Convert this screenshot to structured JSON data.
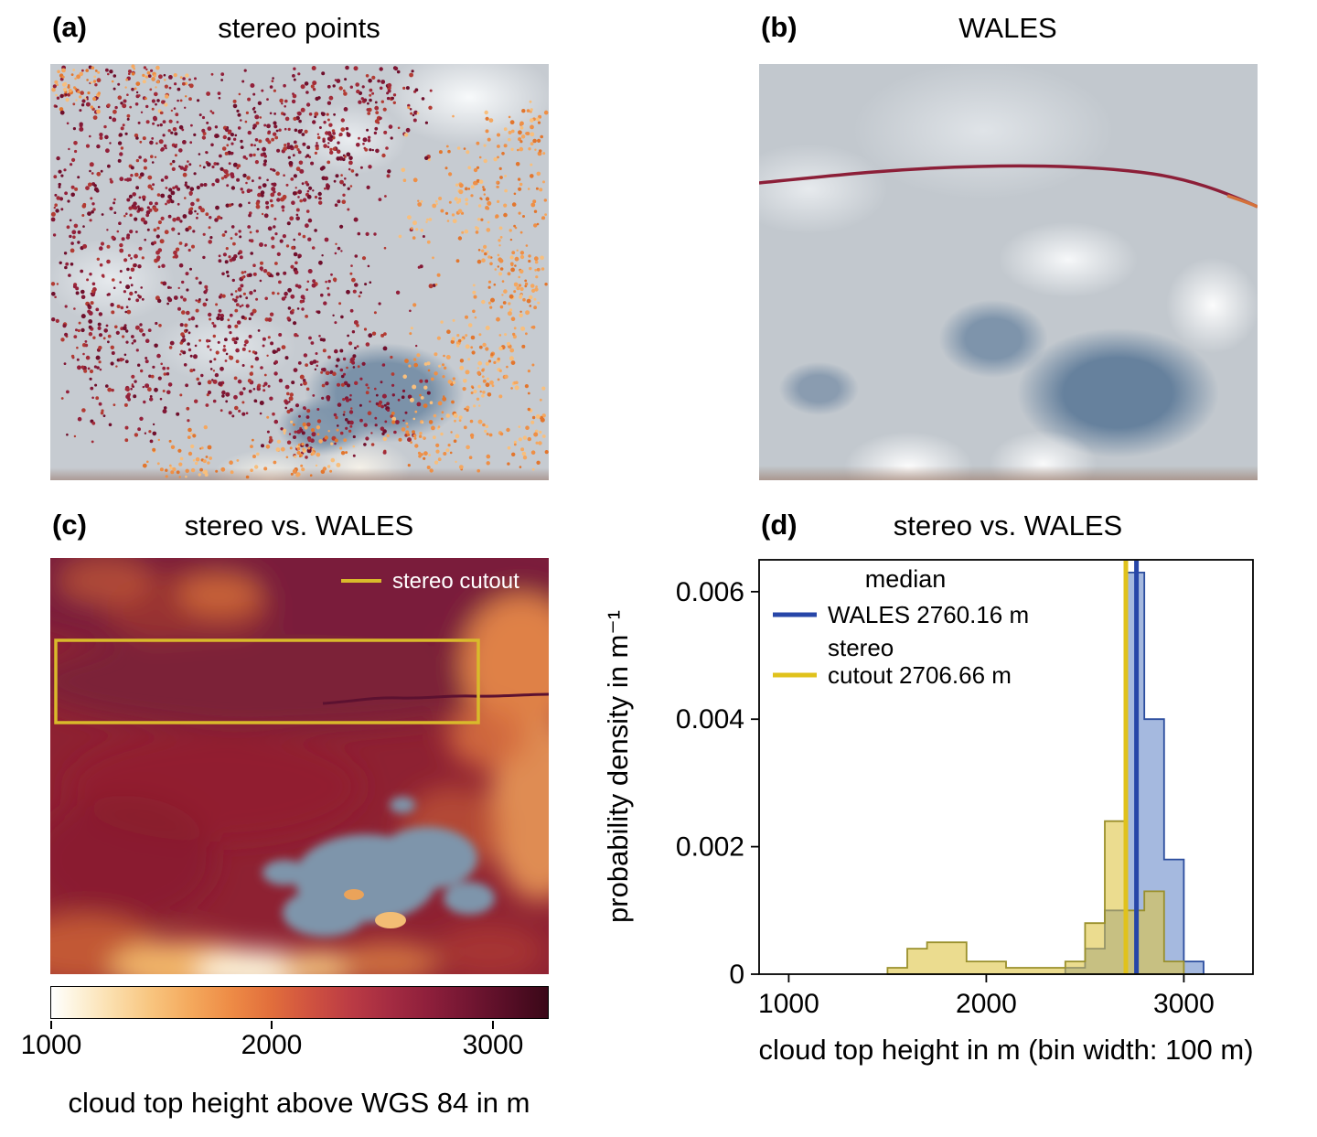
{
  "panels": {
    "a": {
      "label": "(a)",
      "title": "stereo points"
    },
    "b": {
      "label": "(b)",
      "title": "WALES"
    },
    "c": {
      "label": "(c)",
      "title": "stereo vs. WALES",
      "cutout_legend": "stereo cutout"
    },
    "d": {
      "label": "(d)",
      "title": "stereo vs. WALES"
    }
  },
  "colorbar": {
    "label": "cloud top height above WGS 84 in m",
    "tick_labels": [
      "1000",
      "2000",
      "3000"
    ],
    "tick_values": [
      1000,
      2000,
      3000
    ],
    "range": [
      1000,
      3250
    ]
  },
  "chart_data": {
    "type": "bar",
    "subtype": "overlaid-step-histograms",
    "title": "stereo vs. WALES",
    "xlabel": "cloud top height in m (bin width: 100 m)",
    "ylabel": "probability density in m⁻¹",
    "xlim": [
      850,
      3350
    ],
    "ylim": [
      0,
      0.0065
    ],
    "xtick_values": [
      1000,
      2000,
      3000
    ],
    "xtick_labels": [
      "1000",
      "2000",
      "3000"
    ],
    "ytick_values": [
      0,
      0.002,
      0.004,
      0.006
    ],
    "ytick_labels": [
      "0",
      "0.002",
      "0.004",
      "0.006"
    ],
    "bin_width": 100,
    "bin_start": 1500,
    "legend_title": "median",
    "grid": false,
    "series": [
      {
        "name": "WALES",
        "median": 2760.16,
        "legend_label": "WALES 2760.16 m",
        "fill": "#5b7fc4",
        "fill_opacity": 0.55,
        "edge": "#2b4d9e",
        "median_color": "#2746a8",
        "values": [
          0,
          0,
          0,
          0,
          0,
          0,
          0,
          0,
          0,
          0.0001,
          0.0004,
          0.001,
          0.0063,
          0.004,
          0.0018,
          0.0002
        ]
      },
      {
        "name": "stereo cutout",
        "median": 2706.66,
        "legend_label_line1": "stereo",
        "legend_label_line2": "cutout 2706.66 m",
        "fill": "#ddc545",
        "fill_opacity": 0.6,
        "edge": "#9a902c",
        "median_color": "#e0c21c",
        "values": [
          0.0001,
          0.0004,
          0.0005,
          0.0005,
          0.0002,
          0.0002,
          0.0001,
          0.0001,
          0.0001,
          0.0002,
          0.0008,
          0.0024,
          0.001,
          0.0013,
          0.0002,
          0
        ]
      }
    ]
  },
  "colors": {
    "stereo_points_dark": [
      "#6f0f2c",
      "#811734",
      "#92203a",
      "#a22b38",
      "#b23b33"
    ],
    "stereo_points_warm": [
      "#e2762e",
      "#ee8f46",
      "#f5a75f",
      "#f8bf7d"
    ],
    "wales_track": "#8c1f38",
    "cutout_box": "#d9ba2b"
  }
}
